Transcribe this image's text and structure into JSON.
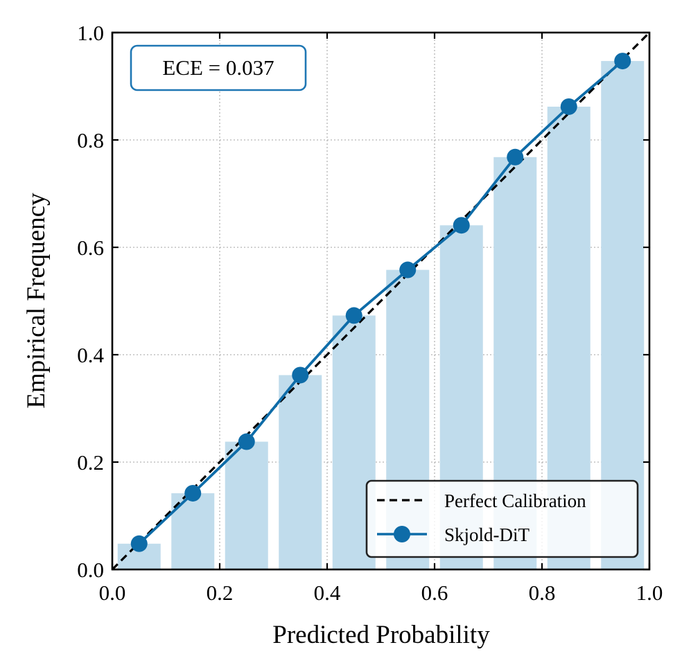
{
  "chart_data": {
    "type": "bar",
    "title": "",
    "xlabel": "Predicted Probability",
    "ylabel": "Empirical Frequency",
    "xlim": [
      0.0,
      1.0
    ],
    "ylim": [
      0.0,
      1.0
    ],
    "x_ticks": [
      "0.0",
      "0.2",
      "0.4",
      "0.6",
      "0.8",
      "1.0"
    ],
    "y_ticks": [
      "0.0",
      "0.2",
      "0.4",
      "0.6",
      "0.8",
      "1.0"
    ],
    "grid": true,
    "bin_centers": [
      0.05,
      0.15,
      0.25,
      0.35,
      0.45,
      0.55,
      0.65,
      0.75,
      0.85,
      0.95
    ],
    "bin_width": 0.08,
    "series": [
      {
        "name": "Skjold-DiT",
        "kind": "line-with-markers",
        "x": [
          0.05,
          0.15,
          0.25,
          0.35,
          0.45,
          0.55,
          0.65,
          0.75,
          0.85,
          0.95
        ],
        "values": [
          0.048,
          0.142,
          0.238,
          0.362,
          0.473,
          0.558,
          0.641,
          0.768,
          0.862,
          0.947
        ]
      },
      {
        "name": "Perfect Calibration",
        "kind": "dashed-reference",
        "x": [
          0.0,
          1.0
        ],
        "values": [
          0.0,
          1.0
        ]
      }
    ],
    "annotation": "ECE = 0.037",
    "legend": [
      "Perfect Calibration",
      "Skjold-DiT"
    ],
    "legend_position": "lower-right"
  },
  "colors": {
    "bar": "#c0dcec",
    "line": "#0e6ca8",
    "reference": "#000000",
    "grid": "#b3b3b3",
    "ece_border": "#1f77b4",
    "legend_border": "#222222"
  }
}
